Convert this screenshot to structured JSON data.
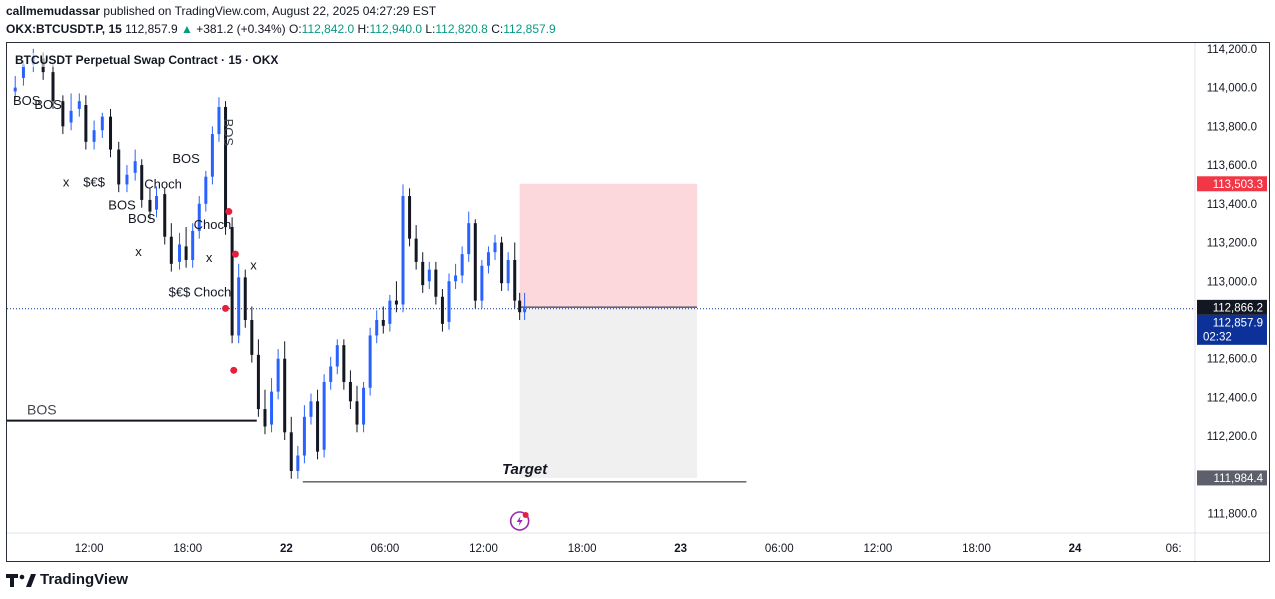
{
  "header": {
    "author": "callmemudassar",
    "published_text": "published on TradingView.com, August 22, 2025 04:27:29 EST",
    "symbol": "OKX:BTCUSDT.P, 15",
    "last_price": "112,857.9",
    "change_arrow": "▲",
    "change": "+381.2 (+0.34%)",
    "open_label": "O:",
    "open": "112,842.0",
    "high_label": "H:",
    "high": "112,940.0",
    "low_label": "L:",
    "low": "112,820.8",
    "close_label": "C:",
    "close": "112,857.9"
  },
  "chart_title": "BTCUSDT Perpetual Swap Contract · 15 · OKX",
  "footer": {
    "brand": "TradingView",
    "logo": "tradingview-logo-icon"
  },
  "colors": {
    "up": "#2962ff",
    "down": "#131722",
    "stop_zone": "#fcd7dc",
    "target_zone": "#f0f0f0",
    "price_tag": "#0c3299",
    "stop_tag": "#f23645",
    "target_tag": "#5d606b",
    "marker": "#e91e3e"
  },
  "chart_data": {
    "type": "candlestick",
    "title": "BTCUSDT Perpetual Swap Contract · 15 · OKX",
    "interval": "15",
    "y_ticks": [
      "114,200.0",
      "114,000.0",
      "113,800.0",
      "113,600.0",
      "113,400.0",
      "113,200.0",
      "113,000.0",
      "112,600.0",
      "112,400.0",
      "112,200.0",
      "111,800.0"
    ],
    "y_tick_values": [
      114200,
      114000,
      113800,
      113600,
      113400,
      113200,
      113000,
      112600,
      112400,
      112200,
      111800
    ],
    "ylim": [
      111700,
      114220
    ],
    "x_ticks": [
      "12:00",
      "18:00",
      "22",
      "06:00",
      "12:00",
      "18:00",
      "23",
      "06:00",
      "12:00",
      "18:00",
      "24",
      "06:"
    ],
    "x_tick_hours": [
      12,
      18,
      24,
      30,
      36,
      42,
      48,
      54,
      60,
      66,
      72,
      78
    ],
    "xlim_hours": [
      7,
      79.3
    ],
    "price_labels": {
      "stop": {
        "text": "113,503.3",
        "value": 113503.3
      },
      "entry": {
        "text": "112,866.2",
        "value": 112866.2
      },
      "current": {
        "text": "112,857.9",
        "value": 112857.9
      },
      "countdown": "02:32",
      "target": {
        "text": "111,984.4",
        "value": 111984.4
      }
    },
    "position": {
      "type": "short",
      "start_hour": 38.2,
      "end_hour": 49.0,
      "entry": 112866.2,
      "stop": 113503.3,
      "target": 111984.4
    },
    "target_line": {
      "label": "Target",
      "value": 111964,
      "from_hour": 25.0,
      "to_hour": 52.0
    },
    "bos_line": {
      "label": "BOS",
      "value": 112280,
      "from_hour": 7.0,
      "to_hour": 22.2
    },
    "annotations": [
      {
        "text": "BOS",
        "hour": 8.2,
        "value": 113910,
        "vertical": false
      },
      {
        "text": "BOS",
        "hour": 9.5,
        "value": 113890,
        "vertical": false
      },
      {
        "text": "x",
        "hour": 10.6,
        "value": 113490,
        "vertical": false
      },
      {
        "text": "$€$",
        "hour": 12.3,
        "value": 113490,
        "vertical": false
      },
      {
        "text": "Choch",
        "hour": 16.5,
        "value": 113480,
        "vertical": false
      },
      {
        "text": "BOS",
        "hour": 14.0,
        "value": 113370,
        "vertical": false
      },
      {
        "text": "BOS",
        "hour": 15.2,
        "value": 113300,
        "vertical": false
      },
      {
        "text": "x",
        "hour": 15.0,
        "value": 113130,
        "vertical": false
      },
      {
        "text": "BOS",
        "hour": 17.9,
        "value": 113610,
        "vertical": false
      },
      {
        "text": "Choch",
        "hour": 19.5,
        "value": 113270,
        "vertical": false
      },
      {
        "text": "x",
        "hour": 19.3,
        "value": 113100,
        "vertical": false
      },
      {
        "text": "x",
        "hour": 22.0,
        "value": 113060,
        "vertical": false
      },
      {
        "text": "$€$",
        "hour": 17.5,
        "value": 112920,
        "vertical": false
      },
      {
        "text": "Choch",
        "hour": 19.5,
        "value": 112920,
        "vertical": false
      },
      {
        "text": "BOS",
        "hour": 20.2,
        "value": 113840,
        "vertical": true
      }
    ],
    "markers": [
      {
        "hour": 20.5,
        "value": 113360
      },
      {
        "hour": 20.9,
        "value": 113140
      },
      {
        "hour": 20.3,
        "value": 112860
      },
      {
        "hour": 20.8,
        "value": 112540
      }
    ],
    "candles": [
      [
        7.5,
        113980,
        114060,
        114000
      ],
      [
        8.0,
        114050,
        114140,
        114120
      ],
      [
        8.6,
        114120,
        114200,
        114160
      ],
      [
        9.2,
        114150,
        114180,
        114080
      ],
      [
        9.8,
        114080,
        114120,
        113930
      ],
      [
        10.4,
        113930,
        113960,
        113800
      ],
      [
        10.9,
        113820,
        113970,
        113880
      ],
      [
        11.4,
        113890,
        113970,
        113930
      ],
      [
        11.8,
        113910,
        113960,
        113720
      ],
      [
        12.3,
        113720,
        113830,
        113780
      ],
      [
        12.8,
        113780,
        113870,
        113850
      ],
      [
        13.3,
        113850,
        113890,
        113680
      ],
      [
        13.8,
        113680,
        113720,
        113500
      ],
      [
        14.3,
        113500,
        113600,
        113550
      ],
      [
        14.8,
        113560,
        113680,
        113620
      ],
      [
        15.2,
        113600,
        113630,
        113420
      ],
      [
        15.7,
        113420,
        113480,
        113360
      ],
      [
        16.1,
        113370,
        113490,
        113440
      ],
      [
        16.6,
        113450,
        113480,
        113230
      ],
      [
        17.0,
        113230,
        113300,
        113090
      ],
      [
        17.5,
        113100,
        113250,
        113190
      ],
      [
        17.9,
        113180,
        113280,
        113110
      ],
      [
        18.3,
        113110,
        113300,
        113260
      ],
      [
        18.7,
        113260,
        113440,
        113400
      ],
      [
        19.1,
        113400,
        113570,
        113540
      ],
      [
        19.5,
        113540,
        113800,
        113760
      ],
      [
        19.9,
        113760,
        113950,
        113900
      ],
      [
        20.3,
        113900,
        113930,
        113280
      ],
      [
        20.7,
        113280,
        113330,
        112720
      ],
      [
        21.1,
        112720,
        113090,
        113020
      ],
      [
        21.5,
        113020,
        113060,
        112800
      ],
      [
        21.9,
        112800,
        112870,
        112620
      ],
      [
        22.3,
        112620,
        112700,
        112340
      ],
      [
        22.7,
        112340,
        112440,
        112250
      ],
      [
        23.1,
        112260,
        112500,
        112430
      ],
      [
        23.5,
        112430,
        112650,
        112600
      ],
      [
        23.9,
        112600,
        112690,
        112220
      ],
      [
        24.3,
        112220,
        112300,
        112020
      ],
      [
        24.7,
        112020,
        112150,
        112100
      ],
      [
        25.1,
        112100,
        112360,
        112300
      ],
      [
        25.5,
        112300,
        112420,
        112380
      ],
      [
        25.9,
        112380,
        112440,
        112120
      ],
      [
        26.3,
        112130,
        112520,
        112480
      ],
      [
        26.7,
        112480,
        112610,
        112560
      ],
      [
        27.1,
        112560,
        112700,
        112670
      ],
      [
        27.5,
        112670,
        112700,
        112480
      ],
      [
        27.9,
        112480,
        112540,
        112380
      ],
      [
        28.3,
        112380,
        112460,
        112260
      ],
      [
        28.7,
        112260,
        112480,
        112450
      ],
      [
        29.1,
        112450,
        112760,
        112720
      ],
      [
        29.5,
        112720,
        112850,
        112800
      ],
      [
        29.9,
        112800,
        112870,
        112770
      ],
      [
        30.3,
        112780,
        112930,
        112900
      ],
      [
        30.7,
        112900,
        113000,
        112880
      ],
      [
        31.1,
        112880,
        113500,
        113440
      ],
      [
        31.5,
        113440,
        113480,
        113220
      ],
      [
        31.9,
        113220,
        113290,
        113100
      ],
      [
        32.3,
        113100,
        113150,
        112980
      ],
      [
        32.7,
        113000,
        113100,
        113060
      ],
      [
        33.1,
        113060,
        113100,
        112920
      ],
      [
        33.5,
        112920,
        112960,
        112780
      ],
      [
        33.9,
        112790,
        113040,
        113000
      ],
      [
        34.3,
        113000,
        113090,
        113030
      ],
      [
        34.7,
        113030,
        113180,
        113140
      ],
      [
        35.1,
        113140,
        113360,
        113300
      ],
      [
        35.5,
        113300,
        113320,
        112900
      ],
      [
        35.9,
        112900,
        113110,
        113080
      ],
      [
        36.3,
        113080,
        113180,
        113150
      ],
      [
        36.7,
        113150,
        113240,
        113200
      ],
      [
        37.1,
        113200,
        113230,
        112990
      ],
      [
        37.5,
        112990,
        113150,
        113110
      ],
      [
        37.9,
        113110,
        113200,
        112900
      ],
      [
        38.2,
        112900,
        112940,
        112840
      ],
      [
        38.5,
        112840,
        112940,
        112858
      ]
    ]
  }
}
